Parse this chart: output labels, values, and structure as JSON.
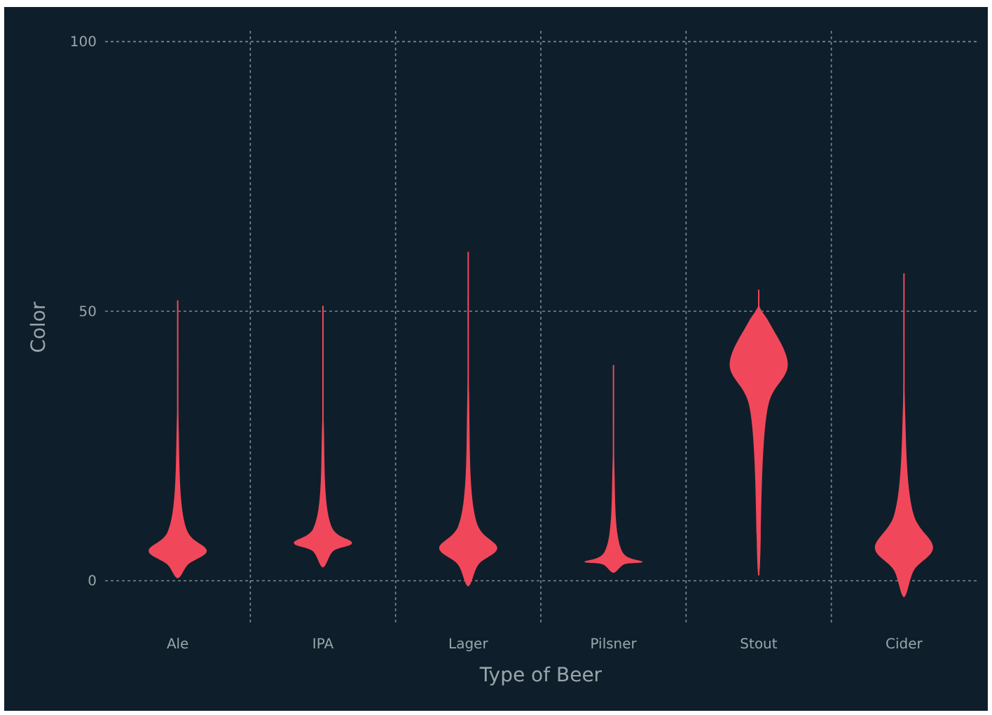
{
  "chart_data": {
    "type": "box",
    "xlabel": "Type of Beer",
    "ylabel": "Color",
    "categories": [
      "Ale",
      "IPA",
      "Lager",
      "Pilsner",
      "Stout",
      "Cider"
    ],
    "color": "#f0485a",
    "ylim": [
      -8,
      102
    ],
    "yticks": [
      0,
      50,
      100
    ],
    "grid": true,
    "boxes": [
      {
        "low": 0.5,
        "q1": 3,
        "median": 5.5,
        "q3": 9,
        "high": 52
      },
      {
        "low": 2.5,
        "q1": 5.5,
        "median": 7,
        "q3": 9.5,
        "high": 51
      },
      {
        "low": -1,
        "q1": 3,
        "median": 6,
        "q3": 10,
        "high": 61
      },
      {
        "low": 1.5,
        "q1": 3,
        "median": 3.5,
        "q3": 5,
        "high": 40
      },
      {
        "low": 1,
        "q1": 33,
        "median": 40,
        "q3": 48,
        "high": 54
      },
      {
        "low": -3,
        "q1": 2,
        "median": 6,
        "q3": 12,
        "high": 57
      }
    ]
  }
}
